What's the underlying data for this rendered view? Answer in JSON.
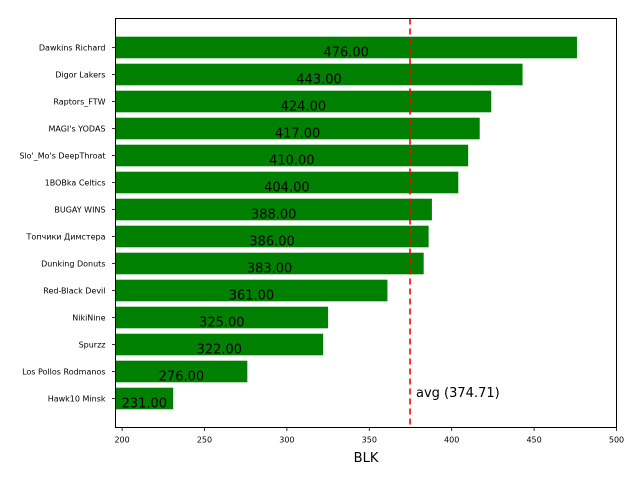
{
  "chart_data": {
    "type": "bar",
    "orientation": "horizontal",
    "categories": [
      "Dawkins Richard",
      "Digor Lakers",
      "Raptors_FTW",
      "MAGI's YODAS",
      "Slo'_Mo's DeepThroat",
      "1BOBka Celtics",
      "BUGAY WINS",
      "Топчики Димстера",
      "Dunking Donuts",
      "Red-Black Devil",
      "NikiNine",
      "Spurzz",
      "Los Pollos Rodmanos",
      "Hawk10 Minsk"
    ],
    "values": [
      476,
      443,
      424,
      417,
      410,
      404,
      388,
      386,
      383,
      361,
      325,
      322,
      276,
      231
    ],
    "value_labels": [
      "476.00",
      "443.00",
      "424.00",
      "417.00",
      "410.00",
      "404.00",
      "388.00",
      "386.00",
      "383.00",
      "361.00",
      "325.00",
      "322.00",
      "276.00",
      "231.00"
    ],
    "xlabel": "BLK",
    "ylabel": "",
    "title": "",
    "xlim": [
      196,
      500
    ],
    "xticks": [
      200,
      250,
      300,
      350,
      400,
      450,
      500
    ],
    "bar_color": "#008000",
    "average": {
      "value": 374.71,
      "label": "avg (374.71)",
      "color": "#ff0000",
      "style": "dashed"
    },
    "grid": false,
    "legend": "none"
  }
}
